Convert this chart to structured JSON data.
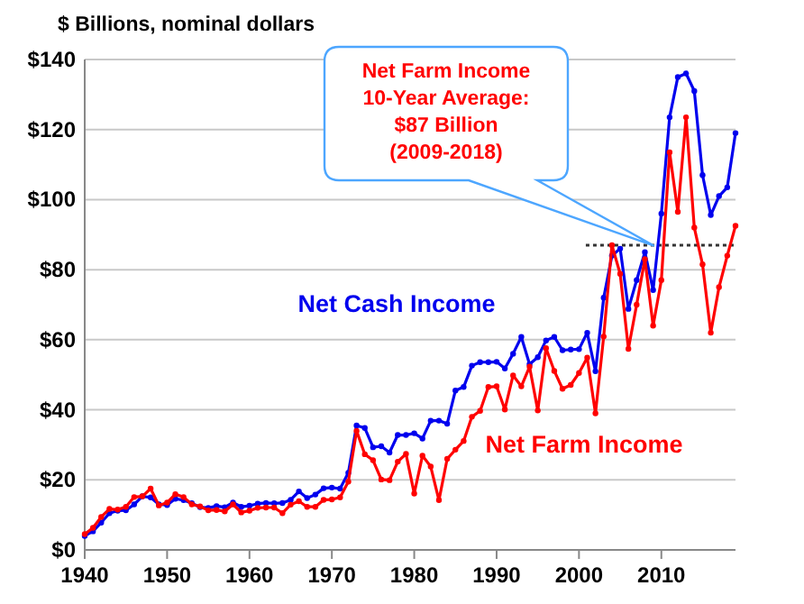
{
  "chart_data": {
    "type": "line",
    "ylabel": "$ Billions, nominal dollars",
    "x": [
      1940,
      1941,
      1942,
      1943,
      1944,
      1945,
      1946,
      1947,
      1948,
      1949,
      1950,
      1951,
      1952,
      1953,
      1954,
      1955,
      1956,
      1957,
      1958,
      1959,
      1960,
      1961,
      1962,
      1963,
      1964,
      1965,
      1966,
      1967,
      1968,
      1969,
      1970,
      1971,
      1972,
      1973,
      1974,
      1975,
      1976,
      1977,
      1978,
      1979,
      1980,
      1981,
      1982,
      1983,
      1984,
      1985,
      1986,
      1987,
      1988,
      1989,
      1990,
      1991,
      1992,
      1993,
      1994,
      1995,
      1996,
      1997,
      1998,
      1999,
      2000,
      2001,
      2002,
      2003,
      2004,
      2005,
      2006,
      2007,
      2008,
      2009,
      2010,
      2011,
      2012,
      2013,
      2014,
      2015,
      2016,
      2017,
      2018,
      2019
    ],
    "series": [
      {
        "name": "Net Cash Income",
        "color": "#0000ee",
        "values": [
          4.0,
          5.3,
          7.8,
          10.5,
          11.2,
          11.3,
          13,
          15.3,
          15,
          13,
          12.8,
          14.6,
          14.2,
          13.3,
          12.2,
          12,
          12.5,
          12.2,
          13.5,
          12.3,
          12.6,
          13.2,
          13.4,
          13.3,
          13.4,
          14.3,
          16.7,
          14.8,
          15.8,
          17.6,
          17.8,
          17.5,
          22,
          35.5,
          34.8,
          29.3,
          29.6,
          27.8,
          32.8,
          32.8,
          33.3,
          31.8,
          36.9,
          36.9,
          36,
          45.5,
          46.5,
          52.6,
          53.6,
          53.6,
          53.7,
          51.8,
          56,
          60.8,
          53,
          55,
          59.8,
          60.8,
          57,
          57.2,
          57.3,
          62,
          51,
          72,
          84,
          86,
          68.8,
          77,
          85,
          74.2,
          96,
          123.5,
          135,
          136,
          131,
          107,
          95.6,
          101,
          103.5,
          119
        ]
      },
      {
        "name": "Net Farm Income",
        "color": "#ff0000",
        "values": [
          4.5,
          6.3,
          9.4,
          11.7,
          11.5,
          12.3,
          15.1,
          15.3,
          17.5,
          12.7,
          13.5,
          15.9,
          15.1,
          13,
          12.4,
          11.3,
          11.4,
          11,
          13,
          10.7,
          11.2,
          12,
          12.1,
          12.1,
          10.5,
          12.9,
          13.9,
          12.3,
          12.3,
          14.3,
          14.4,
          15,
          19.5,
          34,
          27.3,
          25.6,
          20.1,
          19.9,
          25.2,
          27.4,
          16.1,
          26.9,
          23.8,
          14.2,
          26,
          28.6,
          31.1,
          38,
          39.7,
          46.5,
          46.7,
          40.1,
          49.8,
          46.7,
          52.3,
          39.8,
          57.6,
          51.1,
          46,
          47.1,
          50.5,
          54.9,
          39,
          60.9,
          87,
          78.8,
          57.4,
          70,
          83,
          64,
          77,
          113.5,
          96.5,
          123.5,
          92,
          81.5,
          62,
          75,
          84,
          92.5
        ]
      }
    ],
    "xlim": [
      1940,
      2019
    ],
    "xticks": [
      1940,
      1950,
      1960,
      1970,
      1980,
      1990,
      2000,
      2010
    ],
    "ylim": [
      0,
      140
    ],
    "yticks": [
      {
        "value": 0,
        "label": "$0"
      },
      {
        "value": 20,
        "label": "$20"
      },
      {
        "value": 40,
        "label": "$40"
      },
      {
        "value": 60,
        "label": "$60"
      },
      {
        "value": 80,
        "label": "$80"
      },
      {
        "value": 100,
        "label": "$100"
      },
      {
        "value": 120,
        "label": "$120"
      },
      {
        "value": 140,
        "label": "$140"
      }
    ],
    "ref_lines": [
      {
        "axis": "y",
        "value": 87,
        "color": "#333333",
        "line_style": "dotted"
      }
    ],
    "annotations": [
      "Net Farm Income\n10-Year Average:\n$87 Billion\n(2009-2018)"
    ],
    "grid": "y",
    "legend": false,
    "marker": "circle",
    "line_style": "solid"
  }
}
